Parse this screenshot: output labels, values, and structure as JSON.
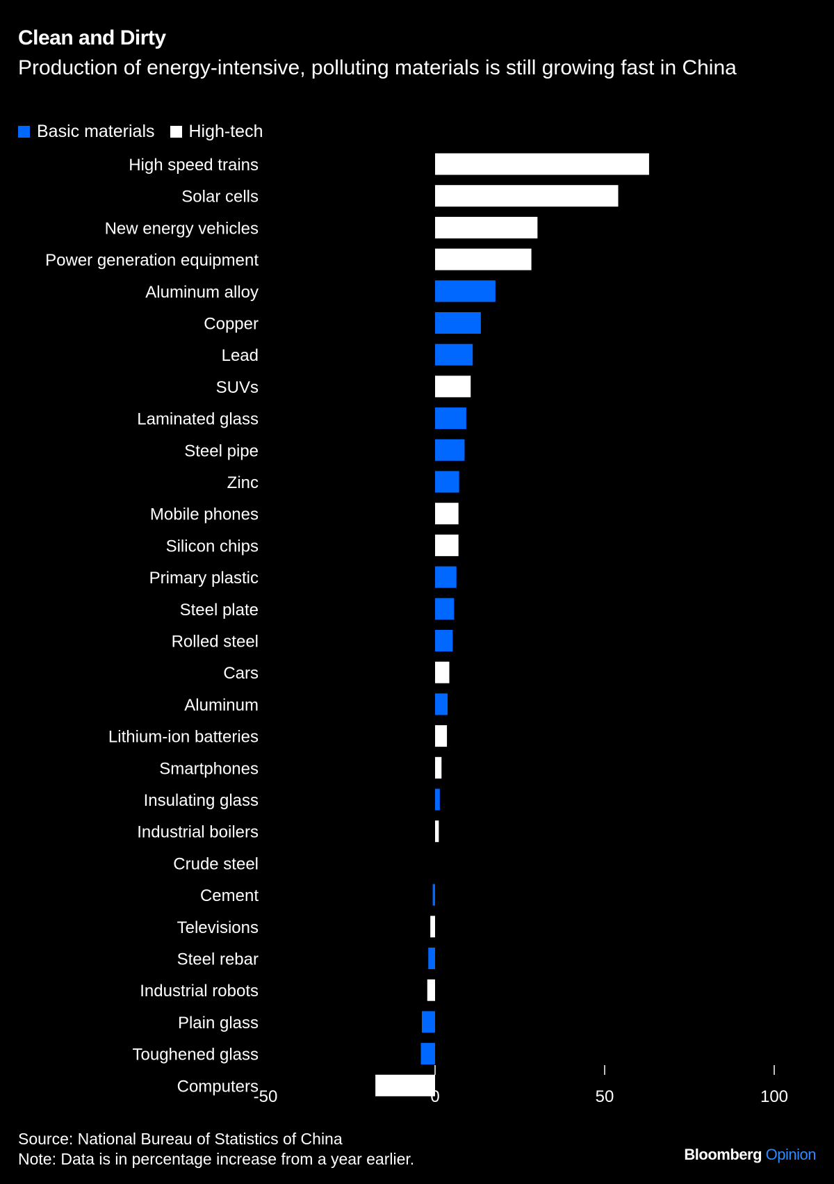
{
  "header": {
    "title": "Clean and Dirty",
    "subtitle": "Production of energy-intensive, polluting materials is still growing fast in China"
  },
  "footer": {
    "source": "Source: National Bureau of Statistics of China",
    "note": "Note: Data is in percentage increase from a year earlier.",
    "logo_brand": "Bloomberg",
    "logo_product": "Opinion"
  },
  "chart_data": {
    "type": "bar",
    "orientation": "horizontal",
    "title": "Clean and Dirty",
    "subtitle": "Production of energy-intensive, polluting materials is still growing fast in China",
    "xlim": [
      -50,
      100
    ],
    "xticks": [
      -50,
      0,
      50,
      100
    ],
    "xtick_labels": [
      "-50",
      "0",
      "50",
      "100"
    ],
    "grid": false,
    "legend_placement": "top-left",
    "legend": [
      {
        "name": "Basic materials",
        "color": "#0068ff"
      },
      {
        "name": "High-tech",
        "color": "#ffffff"
      }
    ],
    "categories": [
      "High speed trains",
      "Solar cells",
      "New energy vehicles",
      "Power generation equipment",
      "Aluminum alloy",
      "Copper",
      "Lead",
      "SUVs",
      "Laminated glass",
      "Steel pipe",
      "Zinc",
      "Mobile phones",
      "Silicon chips",
      "Primary plastic",
      "Steel plate",
      "Rolled steel",
      "Cars",
      "Aluminum",
      "Lithium-ion batteries",
      "Smartphones",
      "Insulating glass",
      "Industrial boilers",
      "Crude steel",
      "Cement",
      "Televisions",
      "Steel rebar",
      "Industrial robots",
      "Plain glass",
      "Toughened glass",
      "Computers"
    ],
    "values": [
      63.1,
      54.0,
      30.2,
      28.4,
      17.8,
      13.5,
      11.1,
      10.5,
      9.2,
      8.7,
      7.1,
      6.9,
      6.9,
      6.3,
      5.6,
      5.2,
      4.2,
      3.7,
      3.5,
      1.9,
      1.4,
      1.1,
      0,
      -0.7,
      -1.4,
      -2.0,
      -2.3,
      -3.9,
      -4.2,
      -17.6
    ],
    "groups": [
      "High-tech",
      "High-tech",
      "High-tech",
      "High-tech",
      "Basic materials",
      "Basic materials",
      "Basic materials",
      "High-tech",
      "Basic materials",
      "Basic materials",
      "Basic materials",
      "High-tech",
      "High-tech",
      "Basic materials",
      "Basic materials",
      "Basic materials",
      "High-tech",
      "Basic materials",
      "High-tech",
      "High-tech",
      "Basic materials",
      "High-tech",
      "Basic materials",
      "Basic materials",
      "High-tech",
      "Basic materials",
      "High-tech",
      "Basic materials",
      "Basic materials",
      "High-tech"
    ]
  }
}
